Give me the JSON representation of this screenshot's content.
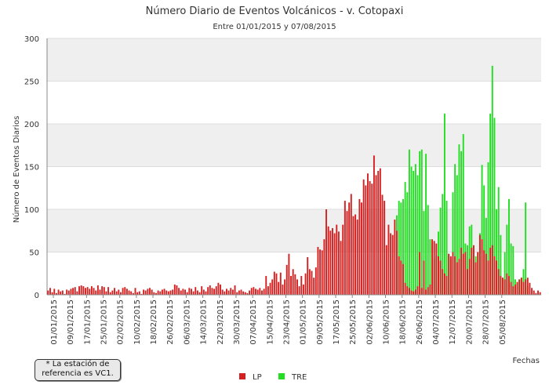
{
  "chart_data": {
    "type": "bar",
    "title": "Número Diario de Eventos Volcánicos -   v. Cotopaxi",
    "subtitle": "Entre 01/01/2015 y 07/08/2015",
    "xlabel": "Fechas",
    "ylabel": "Número de Eventos Diarios",
    "ylim": [
      0,
      300
    ],
    "yticks": [
      0,
      50,
      100,
      150,
      200,
      250,
      300
    ],
    "grid": true,
    "legend_position": "bottom",
    "xticks": [
      "01/01/2015",
      "09/01/2015",
      "17/01/2015",
      "25/01/2015",
      "02/02/2015",
      "10/02/2015",
      "18/02/2015",
      "26/02/2015",
      "06/03/2015",
      "14/03/2015",
      "22/03/2015",
      "30/03/2015",
      "07/04/2015",
      "15/04/2015",
      "23/04/2015",
      "01/05/2015",
      "09/05/2015",
      "17/05/2015",
      "25/05/2015",
      "02/06/2015",
      "10/06/2015",
      "18/06/2015",
      "26/06/2015",
      "04/07/2015",
      "12/07/2015",
      "20/07/2015",
      "28/07/2015",
      "05/08/2015"
    ],
    "x_start": "01/01/2015",
    "x_end": "07/08/2015",
    "series": [
      {
        "name": "LP",
        "color": "#d42020",
        "values": [
          5,
          8,
          3,
          7,
          2,
          6,
          4,
          5,
          1,
          6,
          5,
          7,
          8,
          9,
          4,
          10,
          11,
          10,
          8,
          9,
          7,
          10,
          8,
          5,
          11,
          6,
          10,
          9,
          4,
          9,
          3,
          5,
          8,
          4,
          6,
          3,
          8,
          9,
          7,
          5,
          4,
          2,
          8,
          3,
          4,
          1,
          6,
          5,
          7,
          8,
          6,
          3,
          2,
          5,
          4,
          6,
          7,
          5,
          4,
          5,
          6,
          12,
          11,
          8,
          5,
          7,
          6,
          3,
          8,
          7,
          4,
          9,
          5,
          3,
          10,
          6,
          4,
          9,
          11,
          8,
          7,
          10,
          14,
          12,
          6,
          4,
          7,
          5,
          8,
          6,
          11,
          3,
          5,
          6,
          4,
          3,
          2,
          5,
          8,
          9,
          7,
          6,
          8,
          5,
          7,
          22,
          10,
          14,
          18,
          27,
          25,
          15,
          26,
          12,
          18,
          35,
          48,
          22,
          30,
          24,
          18,
          10,
          22,
          12,
          25,
          44,
          30,
          28,
          20,
          32,
          56,
          53,
          52,
          65,
          100,
          80,
          75,
          78,
          72,
          82,
          74,
          63,
          82,
          110,
          98,
          108,
          118,
          92,
          94,
          88,
          112,
          108,
          135,
          128,
          142,
          133,
          130,
          163,
          140,
          145,
          148,
          117,
          110,
          58,
          82,
          72,
          70,
          88,
          75,
          45,
          40,
          36,
          14,
          10,
          8,
          5,
          4,
          6,
          10,
          50,
          8,
          40,
          6,
          9,
          12,
          65,
          63,
          60,
          45,
          40,
          30,
          25,
          22,
          48,
          45,
          50,
          45,
          38,
          42,
          55,
          48,
          50,
          30,
          42,
          55,
          58,
          38,
          50,
          70,
          65,
          52,
          48,
          40,
          55,
          58,
          45,
          40,
          30,
          22,
          20,
          18,
          25,
          22,
          15,
          10,
          12,
          15,
          18,
          20,
          15,
          18,
          20,
          14,
          8,
          5,
          2,
          5,
          3
        ]
      },
      {
        "name": "TRE",
        "color": "#22dd22",
        "values": [
          0,
          0,
          0,
          0,
          0,
          0,
          0,
          0,
          0,
          0,
          0,
          0,
          0,
          0,
          0,
          0,
          0,
          0,
          0,
          0,
          0,
          0,
          0,
          0,
          0,
          0,
          0,
          0,
          0,
          0,
          0,
          0,
          0,
          0,
          0,
          0,
          0,
          0,
          0,
          0,
          0,
          0,
          0,
          0,
          0,
          0,
          0,
          0,
          0,
          0,
          0,
          0,
          0,
          0,
          0,
          0,
          0,
          0,
          0,
          0,
          0,
          0,
          0,
          0,
          0,
          0,
          0,
          0,
          0,
          0,
          0,
          0,
          0,
          0,
          0,
          0,
          0,
          0,
          0,
          0,
          0,
          0,
          0,
          0,
          0,
          0,
          0,
          0,
          0,
          0,
          0,
          0,
          0,
          0,
          0,
          0,
          0,
          0,
          0,
          0,
          0,
          0,
          0,
          0,
          0,
          0,
          0,
          0,
          0,
          0,
          0,
          0,
          0,
          0,
          0,
          0,
          0,
          0,
          0,
          0,
          0,
          0,
          0,
          0,
          0,
          0,
          0,
          0,
          0,
          0,
          0,
          0,
          0,
          0,
          0,
          0,
          0,
          0,
          0,
          0,
          0,
          0,
          0,
          0,
          0,
          0,
          0,
          0,
          0,
          0,
          0,
          0,
          0,
          0,
          0,
          0,
          0,
          0,
          0,
          0,
          0,
          0,
          0,
          0,
          0,
          0,
          0,
          0,
          93,
          110,
          108,
          112,
          132,
          120,
          170,
          150,
          145,
          153,
          140,
          168,
          170,
          98,
          165,
          105,
          65,
          60,
          42,
          46,
          74,
          102,
          118,
          212,
          110,
          48,
          42,
          120,
          153,
          140,
          176,
          168,
          188,
          60,
          58,
          80,
          82,
          40,
          45,
          50,
          72,
          152,
          128,
          90,
          155,
          212,
          268,
          207,
          100,
          126,
          70,
          20,
          50,
          82,
          112,
          60,
          57,
          18,
          14,
          18,
          20,
          30,
          108,
          10
        ]
      }
    ]
  },
  "note": {
    "line1": "* La estación de",
    "line2": "referencia es VC1."
  }
}
